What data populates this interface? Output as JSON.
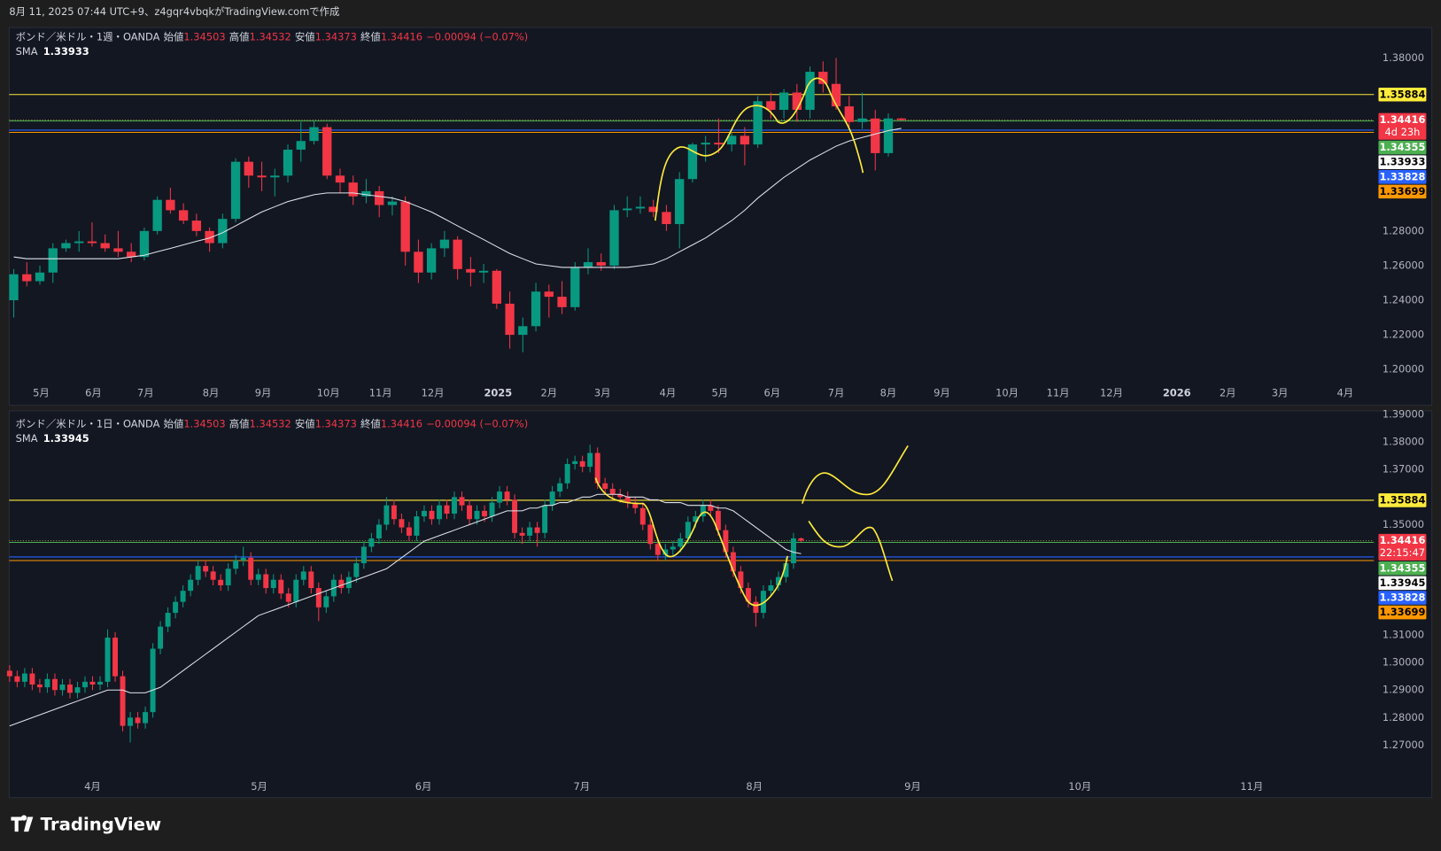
{
  "header": {
    "caption": "8月 11, 2025 07:44 UTC+9、z4gqr4vbqkがTradingView.comで作成"
  },
  "footer": {
    "brand": "TradingView"
  },
  "chart_data": [
    {
      "type": "candlestick",
      "title": "ボンド／米ドル・1週・OANDA",
      "ohlc_names": [
        "始値",
        "高値",
        "安値",
        "終値"
      ],
      "change": "−0.00094 (−0.07%)",
      "sma_name": "SMA",
      "countdown": "4d 23h",
      "up_color": "#089981",
      "down_color": "#f23645",
      "sma_color": "#e0e3eb",
      "ylim": [
        1.1931,
        1.3975
      ],
      "yticks": [
        {
          "value": 1.38,
          "label": "1.38000"
        },
        {
          "value": 1.28,
          "label": "1.28000"
        },
        {
          "value": 1.26,
          "label": "1.26000"
        },
        {
          "value": 1.24,
          "label": "1.24000"
        },
        {
          "value": 1.22,
          "label": "1.22000"
        },
        {
          "value": 1.2,
          "label": "1.20000"
        }
      ],
      "xlim": [
        -0.35,
        104.2
      ],
      "xticks": [
        {
          "value": 2.1,
          "label": "5月"
        },
        {
          "value": 6.1,
          "label": "6月"
        },
        {
          "value": 10.1,
          "label": "7月"
        },
        {
          "value": 15.1,
          "label": "8月"
        },
        {
          "value": 19.1,
          "label": "9月"
        },
        {
          "value": 24.1,
          "label": "10月"
        },
        {
          "value": 28.1,
          "label": "11月"
        },
        {
          "value": 32.1,
          "label": "12月"
        },
        {
          "value": 37.1,
          "label": "2025"
        },
        {
          "value": 41,
          "label": "2月"
        },
        {
          "value": 45.1,
          "label": "3月"
        },
        {
          "value": 50.1,
          "label": "4月"
        },
        {
          "value": 54.1,
          "label": "5月"
        },
        {
          "value": 58.1,
          "label": "6月"
        },
        {
          "value": 63,
          "label": "7月"
        },
        {
          "value": 67,
          "label": "8月"
        },
        {
          "value": 71.1,
          "label": "9月"
        },
        {
          "value": 76.1,
          "label": "10月"
        },
        {
          "value": 80,
          "label": "11月"
        },
        {
          "value": 84.1,
          "label": "12月"
        },
        {
          "value": 89.1,
          "label": "2026"
        },
        {
          "value": 93,
          "label": "2月"
        },
        {
          "value": 97,
          "label": "3月"
        },
        {
          "value": 102,
          "label": "4月"
        }
      ],
      "hlines": [
        {
          "value": 1.35884,
          "color": "#ffeb3b"
        },
        {
          "value": 1.34355,
          "color": "#4caf50"
        },
        {
          "value": 1.33828,
          "color": "#2962ff"
        },
        {
          "value": 1.33699,
          "color": "#ff9800"
        }
      ],
      "open": [
        1.24,
        1.255,
        1.251,
        1.256,
        1.27,
        1.273,
        1.274,
        1.273,
        1.27,
        1.268,
        1.265,
        1.28,
        1.298,
        1.292,
        1.286,
        1.28,
        1.273,
        1.287,
        1.32,
        1.312,
        1.311,
        1.312,
        1.327,
        1.332,
        1.34,
        1.312,
        1.308,
        1.3,
        1.303,
        1.295,
        1.297,
        1.268,
        1.256,
        1.27,
        1.275,
        1.258,
        1.256,
        1.257,
        1.238,
        1.22,
        1.225,
        1.245,
        1.242,
        1.236,
        1.259,
        1.262,
        1.26,
        1.292,
        1.293,
        1.294,
        1.291,
        1.284,
        1.31,
        1.33,
        1.331,
        1.33,
        1.335,
        1.33,
        1.355,
        1.35,
        1.36,
        1.35,
        1.372,
        1.365,
        1.352,
        1.343,
        1.345,
        1.325,
        1.34503
      ],
      "high": [
        1.258,
        1.262,
        1.26,
        1.273,
        1.275,
        1.28,
        1.285,
        1.278,
        1.28,
        1.273,
        1.282,
        1.3,
        1.305,
        1.296,
        1.29,
        1.282,
        1.29,
        1.322,
        1.323,
        1.32,
        1.316,
        1.33,
        1.343,
        1.344,
        1.342,
        1.316,
        1.312,
        1.31,
        1.306,
        1.3,
        1.3,
        1.275,
        1.273,
        1.28,
        1.277,
        1.265,
        1.261,
        1.258,
        1.245,
        1.23,
        1.25,
        1.249,
        1.251,
        1.262,
        1.27,
        1.267,
        1.295,
        1.3,
        1.3,
        1.298,
        1.295,
        1.314,
        1.331,
        1.335,
        1.345,
        1.337,
        1.34,
        1.358,
        1.36,
        1.362,
        1.365,
        1.375,
        1.378,
        1.38,
        1.358,
        1.36,
        1.35,
        1.348,
        1.34532
      ],
      "low": [
        1.23,
        1.248,
        1.249,
        1.25,
        1.268,
        1.268,
        1.271,
        1.268,
        1.265,
        1.262,
        1.263,
        1.278,
        1.29,
        1.284,
        1.277,
        1.268,
        1.27,
        1.285,
        1.305,
        1.303,
        1.3,
        1.308,
        1.32,
        1.33,
        1.31,
        1.302,
        1.295,
        1.296,
        1.288,
        1.289,
        1.26,
        1.25,
        1.252,
        1.265,
        1.252,
        1.248,
        1.25,
        1.235,
        1.212,
        1.21,
        1.222,
        1.23,
        1.232,
        1.234,
        1.255,
        1.257,
        1.258,
        1.288,
        1.29,
        1.288,
        1.28,
        1.27,
        1.308,
        1.32,
        1.325,
        1.326,
        1.318,
        1.328,
        1.345,
        1.345,
        1.343,
        1.345,
        1.36,
        1.35,
        1.34,
        1.339,
        1.315,
        1.323,
        1.34373
      ],
      "close": [
        1.255,
        1.251,
        1.256,
        1.27,
        1.273,
        1.274,
        1.273,
        1.27,
        1.268,
        1.265,
        1.28,
        1.298,
        1.292,
        1.286,
        1.28,
        1.273,
        1.287,
        1.32,
        1.312,
        1.311,
        1.312,
        1.327,
        1.332,
        1.34,
        1.312,
        1.308,
        1.3,
        1.303,
        1.295,
        1.297,
        1.268,
        1.256,
        1.27,
        1.275,
        1.258,
        1.256,
        1.257,
        1.238,
        1.22,
        1.225,
        1.245,
        1.242,
        1.236,
        1.259,
        1.262,
        1.26,
        1.292,
        1.293,
        1.294,
        1.291,
        1.284,
        1.31,
        1.33,
        1.331,
        1.33,
        1.335,
        1.33,
        1.355,
        1.35,
        1.36,
        1.35,
        1.372,
        1.365,
        1.352,
        1.343,
        1.345,
        1.325,
        1.34503,
        1.34416
      ],
      "sma": [
        1.265,
        1.264,
        1.264,
        1.264,
        1.264,
        1.264,
        1.264,
        1.264,
        1.264,
        1.265,
        1.266,
        1.268,
        1.27,
        1.272,
        1.274,
        1.276,
        1.279,
        1.283,
        1.287,
        1.291,
        1.294,
        1.297,
        1.299,
        1.301,
        1.302,
        1.302,
        1.302,
        1.301,
        1.3,
        1.299,
        1.297,
        1.294,
        1.291,
        1.287,
        1.283,
        1.279,
        1.275,
        1.271,
        1.267,
        1.264,
        1.261,
        1.26,
        1.259,
        1.259,
        1.259,
        1.259,
        1.259,
        1.259,
        1.26,
        1.261,
        1.264,
        1.268,
        1.272,
        1.276,
        1.281,
        1.286,
        1.292,
        1.299,
        1.305,
        1.311,
        1.316,
        1.321,
        1.325,
        1.329,
        1.332,
        1.334,
        1.336,
        1.338,
        1.33933
      ]
    },
    {
      "type": "candlestick",
      "title": "ボンド／米ドル・1日・OANDA",
      "ohlc_names": [
        "始値",
        "高値",
        "安値",
        "終値"
      ],
      "change": "−0.00094 (−0.07%)",
      "sma_name": "SMA",
      "countdown": "22:15:47",
      "up_color": "#089981",
      "down_color": "#f23645",
      "sma_color": "#e0e3eb",
      "ylim": [
        1.2593,
        1.3913
      ],
      "yticks": [
        {
          "value": 1.39,
          "label": "1.39000"
        },
        {
          "value": 1.38,
          "label": "1.38000"
        },
        {
          "value": 1.37,
          "label": "1.37000"
        },
        {
          "value": 1.35,
          "label": "1.35000"
        },
        {
          "value": 1.31,
          "label": "1.31000"
        },
        {
          "value": 1.3,
          "label": "1.30000"
        },
        {
          "value": 1.29,
          "label": "1.29000"
        },
        {
          "value": 1.28,
          "label": "1.28000"
        },
        {
          "value": 1.27,
          "label": "1.27000"
        }
      ],
      "xlim": [
        -0.06,
        181
      ],
      "xticks": [
        {
          "value": 11,
          "label": "4月"
        },
        {
          "value": 33.1,
          "label": "5月"
        },
        {
          "value": 54.9,
          "label": "6月"
        },
        {
          "value": 75.9,
          "label": "7月"
        },
        {
          "value": 98.8,
          "label": "8月"
        },
        {
          "value": 119.8,
          "label": "9月"
        },
        {
          "value": 142,
          "label": "10月"
        },
        {
          "value": 164.8,
          "label": "11月"
        }
      ],
      "hlines": [
        {
          "value": 1.35884,
          "color": "#ffeb3b"
        },
        {
          "value": 1.34355,
          "color": "#4caf50"
        },
        {
          "value": 1.33828,
          "color": "#2962ff"
        },
        {
          "value": 1.33699,
          "color": "#ff9800"
        }
      ],
      "open": [
        1.297,
        1.295,
        1.293,
        1.296,
        1.292,
        1.291,
        1.294,
        1.29,
        1.292,
        1.289,
        1.291,
        1.293,
        1.292,
        1.293,
        1.309,
        1.295,
        1.277,
        1.28,
        1.278,
        1.282,
        1.305,
        1.313,
        1.318,
        1.322,
        1.326,
        1.33,
        1.335,
        1.333,
        1.33,
        1.328,
        1.334,
        1.337,
        1.338,
        1.33,
        1.332,
        1.327,
        1.33,
        1.325,
        1.322,
        1.33,
        1.333,
        1.327,
        1.32,
        1.324,
        1.33,
        1.327,
        1.331,
        1.336,
        1.342,
        1.345,
        1.35,
        1.357,
        1.352,
        1.349,
        1.346,
        1.353,
        1.355,
        1.352,
        1.357,
        1.354,
        1.36,
        1.357,
        1.352,
        1.355,
        1.353,
        1.358,
        1.362,
        1.359,
        1.347,
        1.346,
        1.349,
        1.347,
        1.357,
        1.362,
        1.365,
        1.372,
        1.373,
        1.371,
        1.376,
        1.365,
        1.363,
        1.361,
        1.36,
        1.358,
        1.356,
        1.35,
        1.343,
        1.339,
        1.341,
        1.342,
        1.345,
        1.351,
        1.353,
        1.357,
        1.355,
        1.348,
        1.34,
        1.333,
        1.327,
        1.322,
        1.318,
        1.326,
        1.328,
        1.331,
        1.336,
        1.34503
      ],
      "high": [
        1.299,
        1.297,
        1.298,
        1.298,
        1.294,
        1.296,
        1.296,
        1.294,
        1.294,
        1.293,
        1.295,
        1.295,
        1.295,
        1.312,
        1.311,
        1.297,
        1.282,
        1.282,
        1.284,
        1.307,
        1.315,
        1.32,
        1.324,
        1.328,
        1.332,
        1.337,
        1.337,
        1.335,
        1.332,
        1.336,
        1.339,
        1.342,
        1.34,
        1.334,
        1.334,
        1.332,
        1.332,
        1.327,
        1.332,
        1.335,
        1.335,
        1.329,
        1.326,
        1.332,
        1.332,
        1.333,
        1.338,
        1.344,
        1.347,
        1.352,
        1.36,
        1.359,
        1.354,
        1.351,
        1.355,
        1.357,
        1.357,
        1.359,
        1.359,
        1.362,
        1.362,
        1.359,
        1.357,
        1.357,
        1.36,
        1.364,
        1.364,
        1.361,
        1.349,
        1.351,
        1.351,
        1.359,
        1.364,
        1.367,
        1.374,
        1.375,
        1.375,
        1.379,
        1.378,
        1.367,
        1.365,
        1.363,
        1.362,
        1.36,
        1.358,
        1.352,
        1.345,
        1.343,
        1.344,
        1.347,
        1.353,
        1.355,
        1.359,
        1.359,
        1.357,
        1.35,
        1.342,
        1.335,
        1.329,
        1.324,
        1.328,
        1.33,
        1.333,
        1.338,
        1.347,
        1.34532
      ],
      "low": [
        1.293,
        1.291,
        1.291,
        1.29,
        1.289,
        1.289,
        1.288,
        1.288,
        1.287,
        1.287,
        1.289,
        1.29,
        1.29,
        1.291,
        1.293,
        1.275,
        1.271,
        1.276,
        1.276,
        1.28,
        1.303,
        1.311,
        1.316,
        1.32,
        1.324,
        1.328,
        1.331,
        1.328,
        1.326,
        1.326,
        1.332,
        1.335,
        1.328,
        1.328,
        1.325,
        1.325,
        1.323,
        1.32,
        1.32,
        1.328,
        1.325,
        1.315,
        1.318,
        1.322,
        1.325,
        1.325,
        1.329,
        1.334,
        1.34,
        1.343,
        1.348,
        1.35,
        1.347,
        1.344,
        1.344,
        1.351,
        1.35,
        1.35,
        1.352,
        1.352,
        1.355,
        1.35,
        1.35,
        1.351,
        1.351,
        1.356,
        1.357,
        1.345,
        1.343,
        1.344,
        1.342,
        1.345,
        1.355,
        1.36,
        1.363,
        1.37,
        1.369,
        1.369,
        1.363,
        1.361,
        1.359,
        1.358,
        1.356,
        1.354,
        1.348,
        1.341,
        1.337,
        1.337,
        1.339,
        1.34,
        1.343,
        1.349,
        1.351,
        1.353,
        1.346,
        1.338,
        1.331,
        1.325,
        1.32,
        1.313,
        1.316,
        1.324,
        1.326,
        1.329,
        1.334,
        1.34373
      ],
      "close": [
        1.295,
        1.293,
        1.296,
        1.292,
        1.291,
        1.294,
        1.29,
        1.292,
        1.289,
        1.291,
        1.293,
        1.292,
        1.293,
        1.309,
        1.295,
        1.277,
        1.28,
        1.278,
        1.282,
        1.305,
        1.313,
        1.318,
        1.322,
        1.326,
        1.33,
        1.335,
        1.333,
        1.33,
        1.328,
        1.334,
        1.337,
        1.338,
        1.33,
        1.332,
        1.327,
        1.33,
        1.325,
        1.322,
        1.33,
        1.333,
        1.327,
        1.32,
        1.324,
        1.33,
        1.327,
        1.331,
        1.336,
        1.342,
        1.345,
        1.35,
        1.357,
        1.352,
        1.349,
        1.346,
        1.353,
        1.355,
        1.352,
        1.357,
        1.354,
        1.36,
        1.357,
        1.352,
        1.355,
        1.353,
        1.358,
        1.362,
        1.359,
        1.347,
        1.346,
        1.349,
        1.347,
        1.357,
        1.362,
        1.365,
        1.372,
        1.373,
        1.371,
        1.376,
        1.365,
        1.363,
        1.361,
        1.36,
        1.358,
        1.356,
        1.35,
        1.343,
        1.339,
        1.341,
        1.342,
        1.345,
        1.351,
        1.353,
        1.357,
        1.355,
        1.348,
        1.34,
        1.333,
        1.327,
        1.322,
        1.318,
        1.326,
        1.328,
        1.331,
        1.336,
        1.34503,
        1.34416
      ],
      "sma": [
        1.277,
        1.278,
        1.279,
        1.28,
        1.281,
        1.282,
        1.283,
        1.284,
        1.285,
        1.286,
        1.287,
        1.288,
        1.289,
        1.29,
        1.29,
        1.29,
        1.289,
        1.289,
        1.289,
        1.29,
        1.291,
        1.293,
        1.295,
        1.297,
        1.299,
        1.301,
        1.303,
        1.305,
        1.307,
        1.309,
        1.311,
        1.313,
        1.315,
        1.317,
        1.318,
        1.319,
        1.32,
        1.321,
        1.322,
        1.323,
        1.324,
        1.325,
        1.326,
        1.327,
        1.328,
        1.329,
        1.33,
        1.331,
        1.332,
        1.333,
        1.334,
        1.336,
        1.338,
        1.34,
        1.342,
        1.344,
        1.345,
        1.346,
        1.347,
        1.348,
        1.349,
        1.35,
        1.351,
        1.352,
        1.353,
        1.354,
        1.355,
        1.355,
        1.355,
        1.356,
        1.356,
        1.357,
        1.357,
        1.358,
        1.358,
        1.359,
        1.36,
        1.36,
        1.361,
        1.361,
        1.361,
        1.361,
        1.36,
        1.36,
        1.36,
        1.359,
        1.359,
        1.358,
        1.358,
        1.358,
        1.357,
        1.357,
        1.357,
        1.357,
        1.356,
        1.356,
        1.355,
        1.353,
        1.351,
        1.349,
        1.347,
        1.345,
        1.343,
        1.341,
        1.34,
        1.33945
      ]
    }
  ]
}
